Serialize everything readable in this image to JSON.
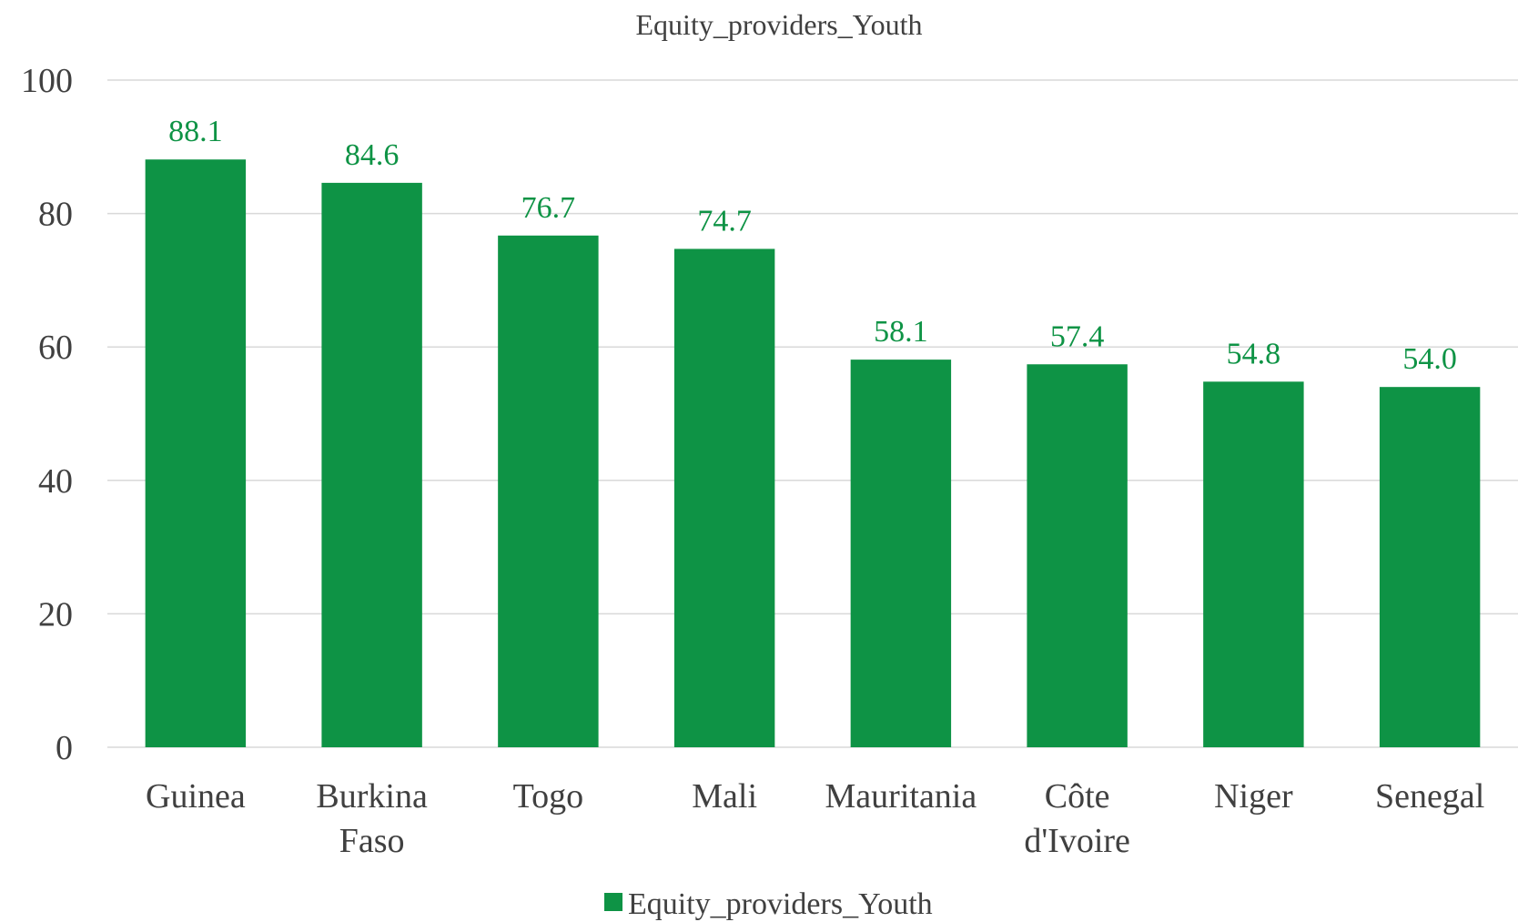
{
  "chart_data": {
    "type": "bar",
    "title": "Equity_providers_Youth",
    "categories": [
      [
        "Guinea"
      ],
      [
        "Burkina",
        "Faso"
      ],
      [
        "Togo"
      ],
      [
        "Mali"
      ],
      [
        "Mauritania"
      ],
      [
        "Côte",
        "d'Ivoire"
      ],
      [
        "Niger"
      ],
      [
        "Senegal"
      ]
    ],
    "series": [
      {
        "name": "Equity_providers_Youth",
        "values": [
          88.1,
          84.6,
          76.7,
          74.7,
          58.1,
          57.4,
          54.8,
          54.0
        ],
        "data_labels": [
          "88.1",
          "84.6",
          "76.7",
          "74.7",
          "58.1",
          "57.4",
          "54.8",
          "54.0"
        ]
      }
    ],
    "ylim": [
      0,
      100
    ],
    "yticks": [
      "0",
      "20",
      "40",
      "60",
      "80",
      "100"
    ],
    "xlabel": "",
    "ylabel": "",
    "grid": true,
    "legend_position": "bottom",
    "colors": {
      "bar": "#0e9345",
      "data_label": "#0e9345",
      "grid": "#d9d9d9",
      "text": "#404040"
    }
  }
}
